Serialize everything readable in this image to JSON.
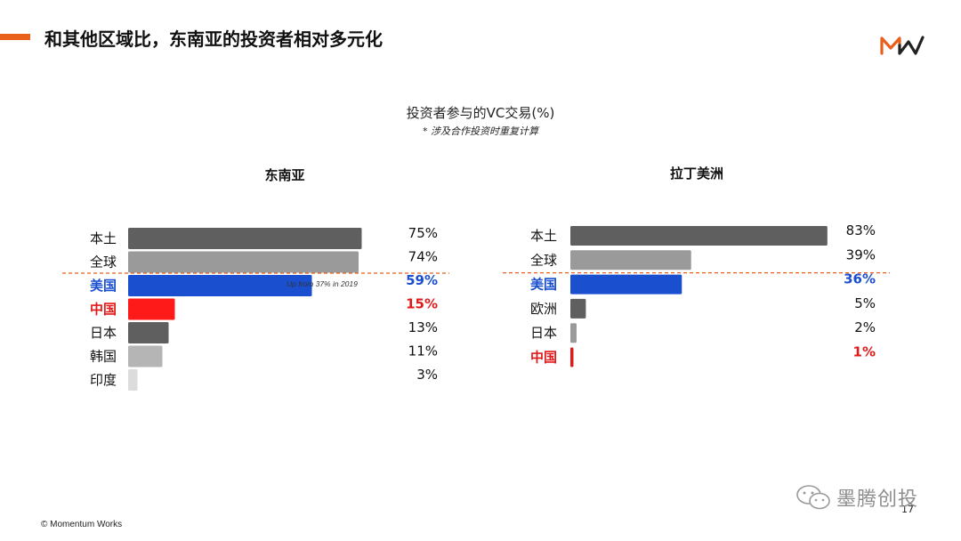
{
  "slide": {
    "title": "和其他区域比，东南亚的投资者相对多元化",
    "footer": "© Momentum Works",
    "page_number": "17",
    "watermark": "墨腾创投"
  },
  "colors": {
    "accent": "#e8601c",
    "highlight_blue": "#1a4fcf",
    "highlight_red": "#e01a1a",
    "dark_gray": "#5f5f5f",
    "mid_gray": "#9a9a9a",
    "light_gray": "#bdbdbd",
    "lightest_gray": "#d9d9d9"
  },
  "chart_header": {
    "title": "投资者参与的VC交易(%)",
    "subtitle": "* 涉及合作投资时重复计算"
  },
  "chart_data": [
    {
      "type": "bar",
      "orientation": "horizontal",
      "title": "东南亚",
      "categories": [
        "本土",
        "全球",
        "美国",
        "中国",
        "日本",
        "韩国",
        "印度"
      ],
      "values": [
        75,
        74,
        59,
        15,
        13,
        11,
        3
      ],
      "value_labels": [
        "75%",
        "74%",
        "59%",
        "15%",
        "13%",
        "11%",
        "3%"
      ],
      "bar_colors": [
        "#5f5f5f",
        "#9a9a9a",
        "#1a4fcf",
        "#ff1a1a",
        "#5f5f5f",
        "#b5b5b5",
        "#dcdcdc"
      ],
      "label_colors": [
        "#111111",
        "#111111",
        "#1a4fcf",
        "#e01a1a",
        "#111111",
        "#111111",
        "#111111"
      ],
      "label_bold": [
        false,
        false,
        true,
        true,
        false,
        false,
        false
      ],
      "annotations": [
        {
          "category": "美国",
          "text": "Up from 37% in 2019"
        }
      ],
      "divider_after": "全球",
      "xlim": [
        0,
        100
      ]
    },
    {
      "type": "bar",
      "orientation": "horizontal",
      "title": "拉丁美洲",
      "categories": [
        "本土",
        "全球",
        "美国",
        "欧洲",
        "日本",
        "中国"
      ],
      "values": [
        83,
        39,
        36,
        5,
        2,
        1
      ],
      "value_labels": [
        "83%",
        "39%",
        "36%",
        "5%",
        "2%",
        "1%"
      ],
      "bar_colors": [
        "#5f5f5f",
        "#9a9a9a",
        "#1a4fcf",
        "#5f5f5f",
        "#9a9a9a",
        "#e01a1a"
      ],
      "label_colors": [
        "#111111",
        "#111111",
        "#1a4fcf",
        "#111111",
        "#111111",
        "#e01a1a"
      ],
      "label_bold": [
        false,
        false,
        true,
        false,
        false,
        true
      ],
      "annotations": [],
      "divider_after": "全球",
      "xlim": [
        0,
        100
      ]
    }
  ]
}
